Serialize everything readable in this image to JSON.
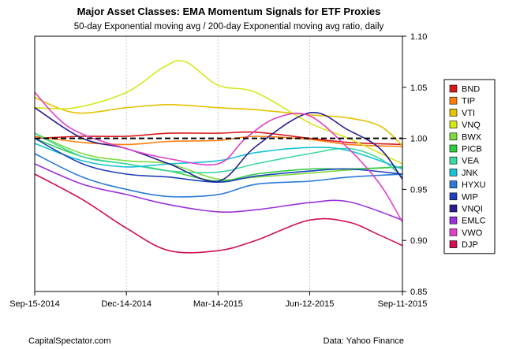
{
  "chart_data": {
    "type": "line",
    "title": "Major Asset Classes: EMA Momentum Signals for ETF Proxies",
    "subtitle": "50-day Exponential moving avg / 200-day Exponential moving avg ratio, daily",
    "x_tick_labels": [
      "Sep-15-2014",
      "Dec-14-2014",
      "Mar-14-2015",
      "Jun-12-2015",
      "Sep-11-2015"
    ],
    "x_tick_dates": [
      "2014-09-15",
      "2014-12-14",
      "2015-03-14",
      "2015-06-12",
      "2015-09-11"
    ],
    "y_tick_labels": [
      "0.85",
      "0.90",
      "0.95",
      "1.00",
      "1.05",
      "1.10"
    ],
    "ylim": [
      0.85,
      1.1
    ],
    "xlim": [
      "2014-09-15",
      "2015-09-11"
    ],
    "reference_line": {
      "y": 1.0,
      "style": "dashed",
      "color": "#000000"
    },
    "grid": "vertical",
    "legend_position": "right",
    "source_left": "CapitalSpectator.com",
    "source_right": "Data: Yahoo Finance",
    "series": [
      {
        "name": "BND",
        "color": "#d7191c",
        "x": [
          "2014-09-15",
          "2014-11-01",
          "2014-12-14",
          "2015-01-25",
          "2015-03-14",
          "2015-04-20",
          "2015-06-12",
          "2015-07-20",
          "2015-09-11"
        ],
        "values": [
          1.0,
          1.002,
          1.002,
          1.005,
          1.005,
          1.006,
          1.0,
          0.996,
          0.994
        ]
      },
      {
        "name": "TIP",
        "color": "#ff7f0e",
        "x": [
          "2014-09-15",
          "2014-11-01",
          "2014-12-14",
          "2015-01-25",
          "2015-03-14",
          "2015-04-20",
          "2015-06-12",
          "2015-07-20",
          "2015-09-11"
        ],
        "values": [
          1.002,
          0.996,
          0.994,
          0.997,
          0.998,
          1.002,
          0.999,
          0.994,
          0.992
        ]
      },
      {
        "name": "VTI",
        "color": "#e6c200",
        "x": [
          "2014-09-15",
          "2014-10-25",
          "2014-12-14",
          "2015-01-25",
          "2015-03-14",
          "2015-04-20",
          "2015-06-12",
          "2015-07-20",
          "2015-08-20",
          "2015-09-11"
        ],
        "values": [
          1.04,
          1.025,
          1.03,
          1.033,
          1.03,
          1.028,
          1.023,
          1.02,
          1.012,
          0.993
        ]
      },
      {
        "name": "VNQ",
        "color": "#d4e81a",
        "x": [
          "2014-09-15",
          "2014-10-25",
          "2014-12-14",
          "2015-01-20",
          "2015-02-10",
          "2015-03-14",
          "2015-04-20",
          "2015-06-12",
          "2015-07-20",
          "2015-09-11"
        ],
        "values": [
          1.03,
          1.03,
          1.045,
          1.07,
          1.075,
          1.052,
          1.045,
          1.015,
          1.0,
          0.975
        ]
      },
      {
        "name": "BWX",
        "color": "#7fdc3c",
        "x": [
          "2014-09-15",
          "2014-11-01",
          "2014-12-14",
          "2015-01-25",
          "2015-03-14",
          "2015-04-20",
          "2015-06-12",
          "2015-07-20",
          "2015-09-11"
        ],
        "values": [
          1.005,
          0.985,
          0.978,
          0.975,
          0.96,
          0.962,
          0.966,
          0.969,
          0.972
        ]
      },
      {
        "name": "PICB",
        "color": "#2ecc40",
        "x": [
          "2014-09-15",
          "2014-11-01",
          "2014-12-14",
          "2015-01-25",
          "2015-03-14",
          "2015-04-20",
          "2015-06-12",
          "2015-07-20",
          "2015-09-11"
        ],
        "values": [
          1.0,
          0.982,
          0.975,
          0.968,
          0.958,
          0.965,
          0.97,
          0.97,
          0.972
        ]
      },
      {
        "name": "VEA",
        "color": "#3dd9a0",
        "x": [
          "2014-09-15",
          "2014-11-01",
          "2014-12-14",
          "2015-01-25",
          "2015-03-14",
          "2015-04-20",
          "2015-06-12",
          "2015-07-20",
          "2015-08-20",
          "2015-09-11"
        ],
        "values": [
          1.005,
          0.982,
          0.975,
          0.968,
          0.967,
          0.975,
          0.985,
          0.99,
          0.98,
          0.962
        ]
      },
      {
        "name": "JNK",
        "color": "#17c3d6",
        "x": [
          "2014-09-15",
          "2014-11-01",
          "2014-12-14",
          "2015-01-25",
          "2015-03-14",
          "2015-04-20",
          "2015-06-12",
          "2015-07-20",
          "2015-09-11"
        ],
        "values": [
          0.995,
          0.978,
          0.972,
          0.975,
          0.978,
          0.986,
          0.991,
          0.988,
          0.97
        ]
      },
      {
        "name": "HYXU",
        "color": "#2b7bd6",
        "x": [
          "2014-09-15",
          "2014-11-01",
          "2014-12-14",
          "2015-01-25",
          "2015-03-14",
          "2015-04-20",
          "2015-06-12",
          "2015-07-20",
          "2015-09-11"
        ],
        "values": [
          0.985,
          0.962,
          0.95,
          0.943,
          0.945,
          0.955,
          0.958,
          0.962,
          0.965
        ]
      },
      {
        "name": "WIP",
        "color": "#1f3fbf",
        "x": [
          "2014-09-15",
          "2014-11-01",
          "2014-12-14",
          "2015-01-25",
          "2015-03-14",
          "2015-04-20",
          "2015-06-12",
          "2015-07-20",
          "2015-09-11"
        ],
        "values": [
          1.0,
          0.975,
          0.965,
          0.962,
          0.957,
          0.963,
          0.968,
          0.97,
          0.965
        ]
      },
      {
        "name": "VNQI",
        "color": "#2a1e8f",
        "x": [
          "2014-09-15",
          "2014-11-01",
          "2014-12-14",
          "2015-01-25",
          "2015-03-14",
          "2015-04-20",
          "2015-06-12",
          "2015-07-20",
          "2015-08-20",
          "2015-09-11"
        ],
        "values": [
          1.03,
          1.0,
          0.99,
          0.975,
          0.958,
          0.992,
          1.025,
          1.008,
          0.99,
          0.96
        ]
      },
      {
        "name": "EMLC",
        "color": "#9b30d9",
        "x": [
          "2014-09-15",
          "2014-11-01",
          "2014-12-14",
          "2015-01-25",
          "2015-03-14",
          "2015-04-20",
          "2015-06-12",
          "2015-07-20",
          "2015-09-11"
        ],
        "values": [
          0.975,
          0.955,
          0.945,
          0.935,
          0.928,
          0.93,
          0.937,
          0.938,
          0.92
        ]
      },
      {
        "name": "VWO",
        "color": "#e040c8",
        "x": [
          "2014-09-15",
          "2014-10-20",
          "2014-12-14",
          "2015-01-25",
          "2015-03-14",
          "2015-04-10",
          "2015-05-10",
          "2015-06-12",
          "2015-07-20",
          "2015-08-20",
          "2015-09-11"
        ],
        "values": [
          1.045,
          1.01,
          0.99,
          0.98,
          0.975,
          1.0,
          1.02,
          1.022,
          0.99,
          0.955,
          0.918
        ]
      },
      {
        "name": "DJP",
        "color": "#d1104f",
        "x": [
          "2014-09-15",
          "2014-11-01",
          "2014-12-14",
          "2015-01-25",
          "2015-03-14",
          "2015-04-20",
          "2015-06-12",
          "2015-07-20",
          "2015-08-20",
          "2015-09-11"
        ],
        "values": [
          0.965,
          0.94,
          0.912,
          0.89,
          0.89,
          0.9,
          0.92,
          0.918,
          0.905,
          0.895
        ]
      }
    ]
  }
}
